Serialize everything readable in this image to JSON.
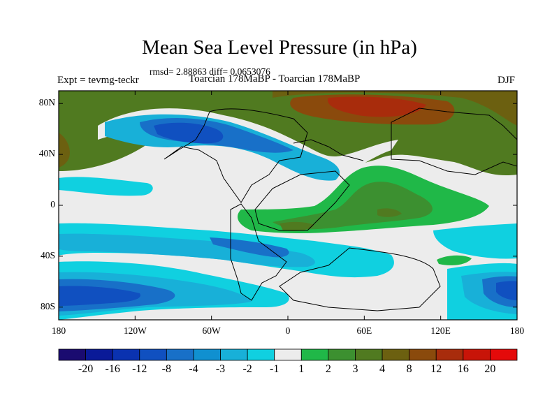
{
  "title": "Mean Sea Level Pressure (in hPa)",
  "stats": "rmsd= 2.88863 diff= 0.0653076",
  "left_string": "Expt = tevmg-teckr",
  "center_string": "Toarcian 178MaBP - Toarcian 178MaBP",
  "right_string": "DJF",
  "lat_ticks": [
    {
      "label": "80N",
      "value": 80
    },
    {
      "label": "40N",
      "value": 40
    },
    {
      "label": "0",
      "value": 0
    },
    {
      "label": "40S",
      "value": -40
    },
    {
      "label": "80S",
      "value": -80
    }
  ],
  "lon_ticks": [
    {
      "label": "180",
      "value": -180
    },
    {
      "label": "120W",
      "value": -120
    },
    {
      "label": "60W",
      "value": -60
    },
    {
      "label": "0",
      "value": 0
    },
    {
      "label": "60E",
      "value": 60
    },
    {
      "label": "120E",
      "value": 120
    },
    {
      "label": "180",
      "value": 180
    }
  ],
  "colorbar": {
    "colors": [
      "#1a0b70",
      "#0a1a98",
      "#0a32b0",
      "#1050c0",
      "#1870c8",
      "#1090d0",
      "#18b0d8",
      "#10d0e0",
      "#ececec",
      "#20b848",
      "#3c9030",
      "#507a20",
      "#6c6010",
      "#8a4a0c",
      "#a82c0c",
      "#c81408",
      "#e40a0a"
    ],
    "labels": [
      "-20",
      "-16",
      "-12",
      "-8",
      "-4",
      "-3",
      "-2",
      "-1",
      "1",
      "2",
      "3",
      "4",
      "8",
      "12",
      "16",
      "20"
    ]
  },
  "map_colors": {
    "white": "#ececec",
    "lightcyan": "#10d0e0",
    "cyan": "#18b0d8",
    "midblue": "#1870c8",
    "blue": "#1050c0",
    "darkblue": "#0a32b0",
    "green": "#20b848",
    "darkgreen": "#3c9030",
    "olive": "#507a20",
    "brown": "#6c6010",
    "rust": "#8a4a0c",
    "red": "#a82c0c"
  }
}
